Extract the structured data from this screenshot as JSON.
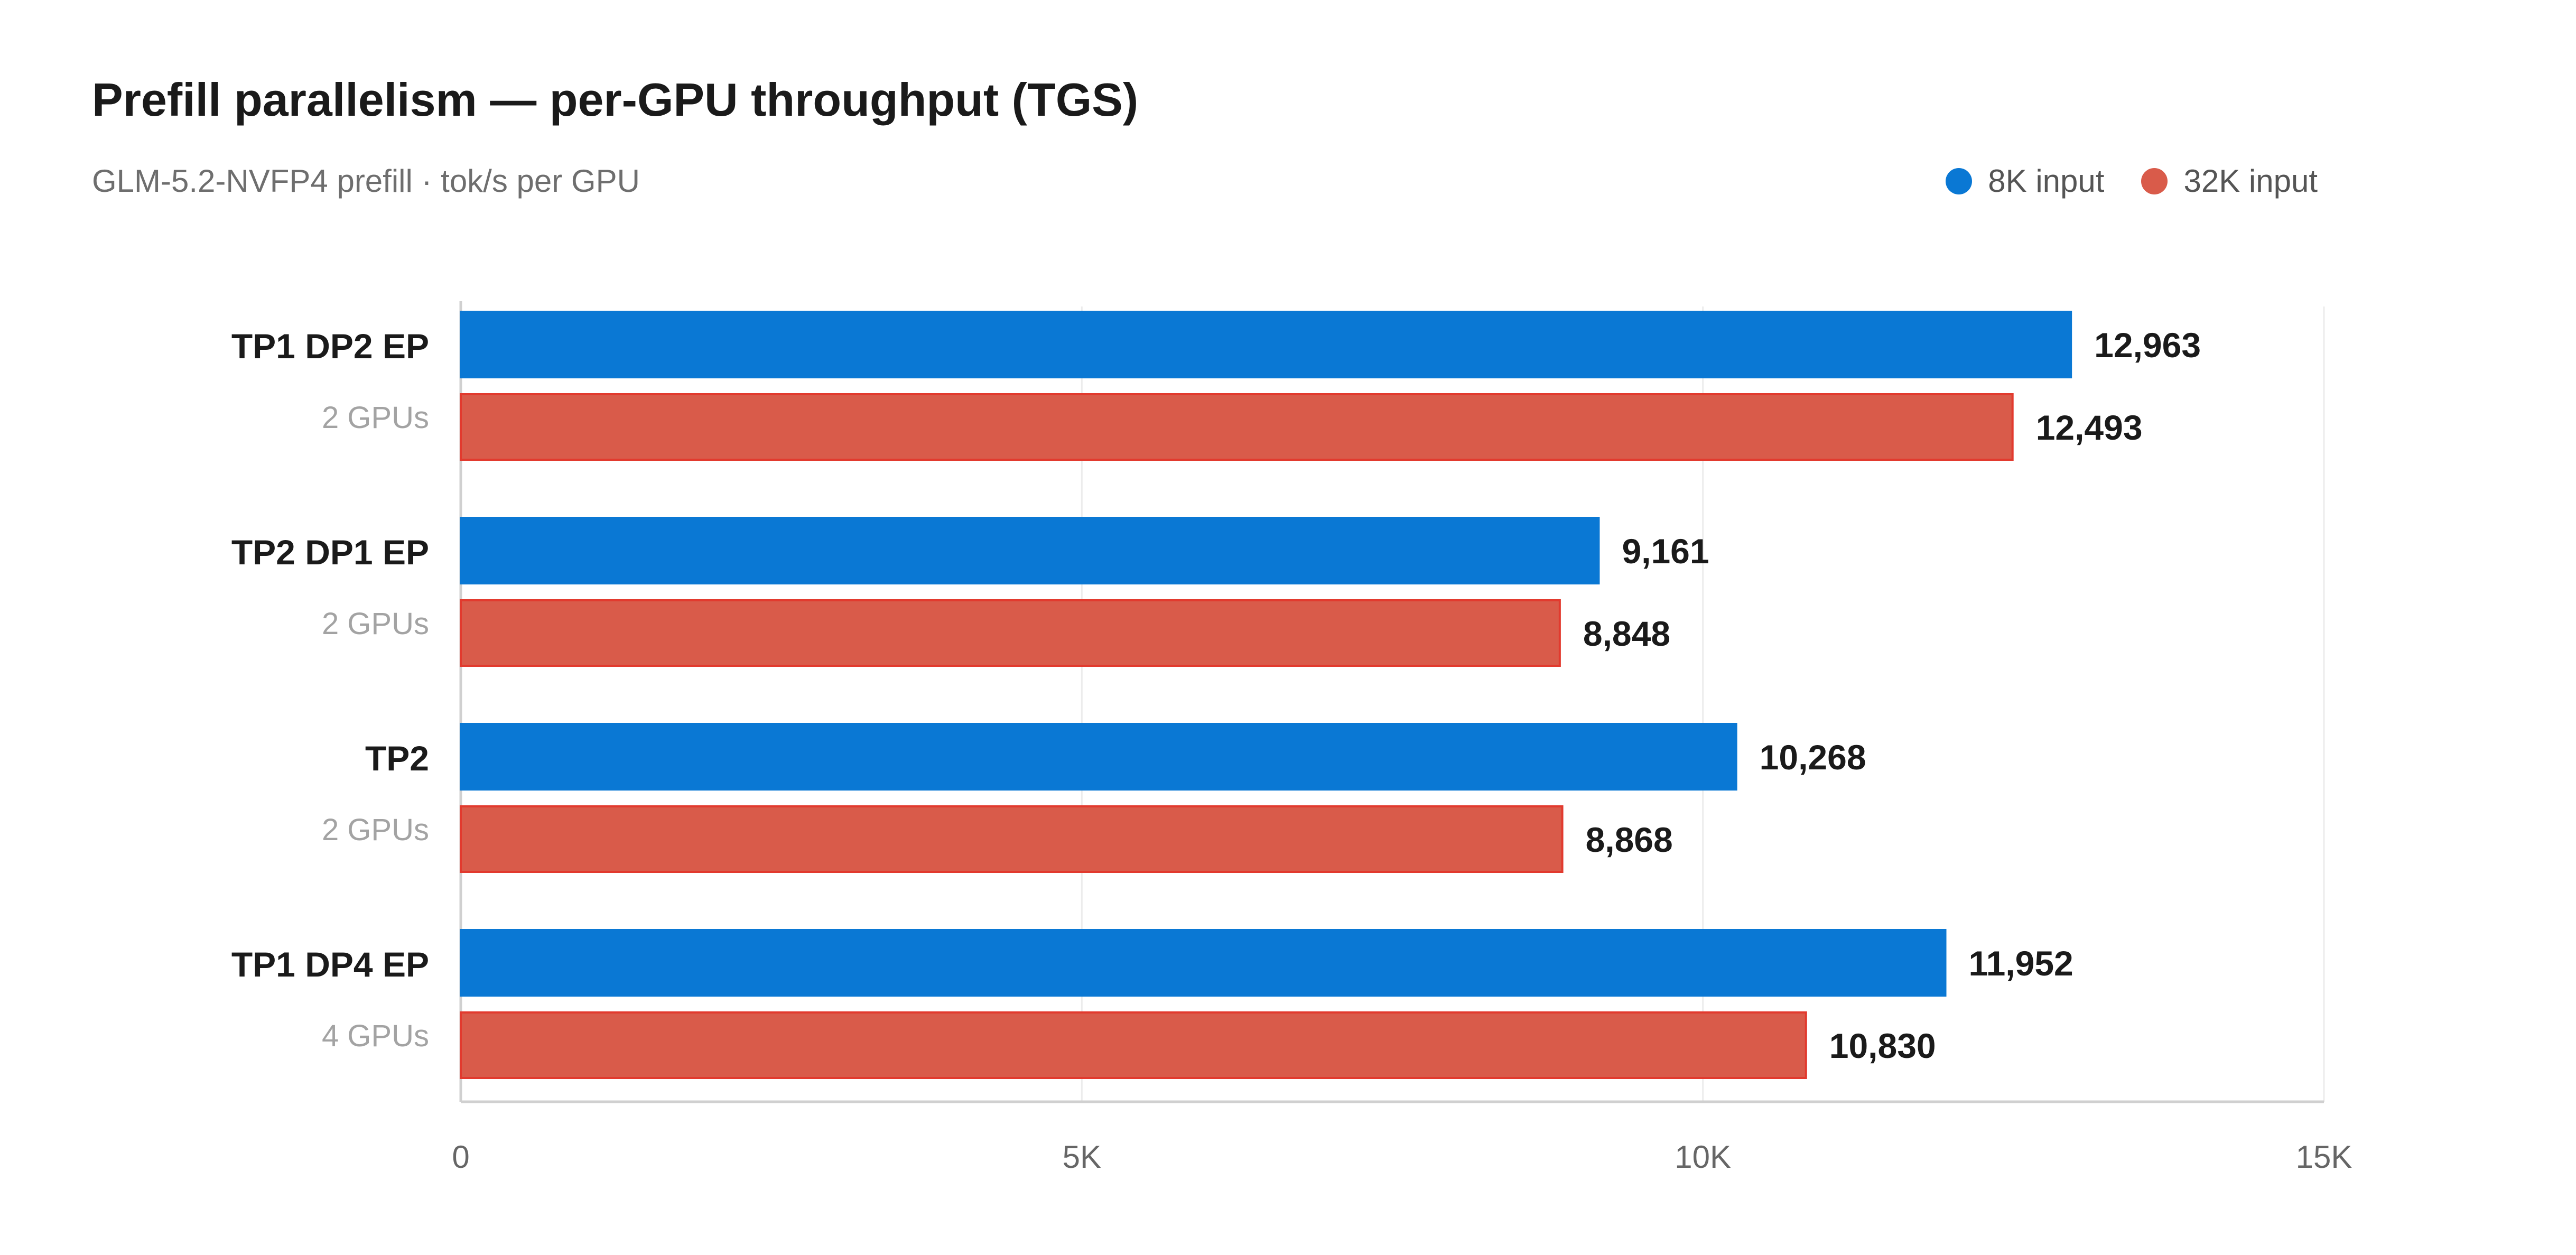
{
  "title": "Prefill parallelism — per-GPU throughput (TGS)",
  "subtitle": "GLM-5.2-NVFP4 prefill · tok/s per GPU",
  "colors": {
    "series_8k": "#0a78d4",
    "series_32k": "#d95b4a",
    "series_32k_border": "#e23a2e",
    "axis": "#d0d0d0",
    "grid": "#ececec",
    "value_label": "#1a1a1a",
    "category_label": "#1a1a1a",
    "sub_label": "#a3a3a3",
    "tick_label": "#666666"
  },
  "chart_data": {
    "type": "bar",
    "orientation": "horizontal",
    "title": "Prefill parallelism — per-GPU throughput (TGS)",
    "subtitle": "GLM-5.2-NVFP4 prefill · tok/s per GPU",
    "categories": [
      "TP1 DP2 EP",
      "TP2 DP1 EP",
      "TP2",
      "TP1 DP4 EP"
    ],
    "category_sublabels": [
      "2 GPUs",
      "2 GPUs",
      "2 GPUs",
      "4 GPUs"
    ],
    "series": [
      {
        "name": "8K input",
        "values": [
          12963,
          9161,
          10268,
          11952
        ],
        "labels": [
          "12,963",
          "9,161",
          "10,268",
          "11,952"
        ]
      },
      {
        "name": "32K input",
        "values": [
          12493,
          8848,
          8868,
          10830
        ],
        "labels": [
          "12,493",
          "8,848",
          "8,868",
          "10,830"
        ]
      }
    ],
    "xlim": [
      0,
      15000
    ],
    "xticks": [
      0,
      5000,
      10000,
      15000
    ],
    "xtick_labels": [
      "0",
      "5K",
      "10K",
      "15K"
    ],
    "grid": true,
    "legend_position": "top-right",
    "xlabel": "",
    "ylabel": ""
  }
}
